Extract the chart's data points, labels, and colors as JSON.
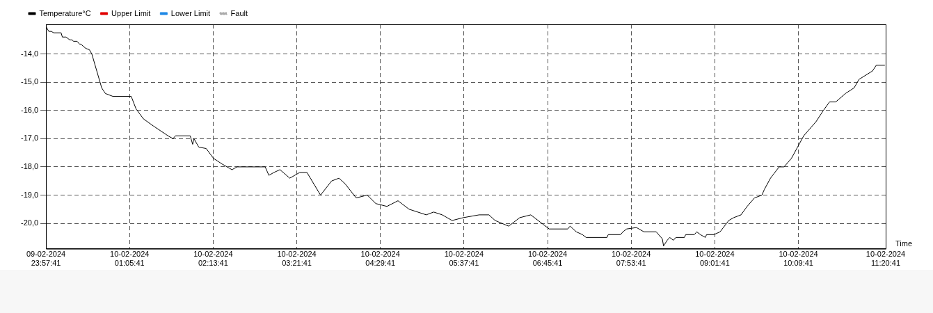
{
  "chart_data": {
    "type": "line",
    "xlabel": "Time",
    "legend": "top left",
    "grid": true,
    "marker": "none",
    "xlim": [
      "2024-02-09T23:57:41",
      "2024-02-10T11:20:41"
    ],
    "ylim": [
      -20.9,
      -12.95
    ],
    "xticks": [
      {
        "value": "2024-02-09T23:57:41",
        "label": "09-02-2024\n23:57:41"
      },
      {
        "value": "2024-02-10T01:05:41",
        "label": "10-02-2024\n01:05:41"
      },
      {
        "value": "2024-02-10T02:13:41",
        "label": "10-02-2024\n02:13:41"
      },
      {
        "value": "2024-02-10T03:21:41",
        "label": "10-02-2024\n03:21:41"
      },
      {
        "value": "2024-02-10T04:29:41",
        "label": "10-02-2024\n04:29:41"
      },
      {
        "value": "2024-02-10T05:37:41",
        "label": "10-02-2024\n05:37:41"
      },
      {
        "value": "2024-02-10T06:45:41",
        "label": "10-02-2024\n06:45:41"
      },
      {
        "value": "2024-02-10T07:53:41",
        "label": "10-02-2024\n07:53:41"
      },
      {
        "value": "2024-02-10T09:01:41",
        "label": "10-02-2024\n09:01:41"
      },
      {
        "value": "2024-02-10T10:09:41",
        "label": "10-02-2024\n10:09:41"
      },
      {
        "value": "2024-02-10T11:20:41",
        "label": "10-02-2024\n11:20:41"
      }
    ],
    "yticks": [
      {
        "value": -20,
        "label": "-20,0"
      },
      {
        "value": -19,
        "label": "-19,0"
      },
      {
        "value": -18,
        "label": "-18,0"
      },
      {
        "value": -17,
        "label": "-17,0"
      },
      {
        "value": -16,
        "label": "-16,0"
      },
      {
        "value": -15,
        "label": "-15,0"
      },
      {
        "value": -14,
        "label": "-14,0"
      }
    ],
    "series": [
      {
        "name": "Temperature°C",
        "color": "#000000",
        "line_style": "solid",
        "x": [
          "2024-02-09T23:58",
          "2024-02-10T00:00",
          "2024-02-10T00:02",
          "2024-02-10T00:04",
          "2024-02-10T00:10",
          "2024-02-10T00:11",
          "2024-02-10T00:14",
          "2024-02-10T00:17",
          "2024-02-10T00:19",
          "2024-02-10T00:20",
          "2024-02-10T00:23",
          "2024-02-10T00:25",
          "2024-02-10T00:26",
          "2024-02-10T00:30",
          "2024-02-10T00:33",
          "2024-02-10T00:35",
          "2024-02-10T00:43",
          "2024-02-10T00:46",
          "2024-02-10T00:52",
          "2024-02-10T01:07",
          "2024-02-10T01:11",
          "2024-02-10T01:17",
          "2024-02-10T01:25",
          "2024-02-10T01:37",
          "2024-02-10T01:41",
          "2024-02-10T01:43",
          "2024-02-10T01:55",
          "2024-02-10T01:57",
          "2024-02-10T01:58",
          "2024-02-10T02:02",
          "2024-02-10T02:08",
          "2024-02-10T02:14",
          "2024-02-10T02:21",
          "2024-02-10T02:29",
          "2024-02-10T02:33",
          "2024-02-10T02:56",
          "2024-02-10T02:59",
          "2024-02-10T03:03",
          "2024-02-10T03:08",
          "2024-02-10T03:16",
          "2024-02-10T03:24",
          "2024-02-10T03:30",
          "2024-02-10T03:41",
          "2024-02-10T03:50",
          "2024-02-10T03:56",
          "2024-02-10T04:01",
          "2024-02-10T04:10",
          "2024-02-10T04:19",
          "2024-02-10T04:26",
          "2024-02-10T04:35",
          "2024-02-10T04:44",
          "2024-02-10T04:53",
          "2024-02-10T05:07",
          "2024-02-10T05:13",
          "2024-02-10T05:20",
          "2024-02-10T05:28",
          "2024-02-10T05:37",
          "2024-02-10T05:50",
          "2024-02-10T05:58",
          "2024-02-10T06:03",
          "2024-02-10T06:14",
          "2024-02-10T06:23",
          "2024-02-10T06:32",
          "2024-02-10T06:41",
          "2024-02-10T06:47",
          "2024-02-10T07:02",
          "2024-02-10T07:04",
          "2024-02-10T07:09",
          "2024-02-10T07:14",
          "2024-02-10T07:17",
          "2024-02-10T07:34",
          "2024-02-10T07:35",
          "2024-02-10T07:45",
          "2024-02-10T07:47",
          "2024-02-10T07:50",
          "2024-02-10T07:58",
          "2024-02-10T08:00",
          "2024-02-10T08:04",
          "2024-02-10T08:14",
          "2024-02-10T08:19",
          "2024-02-10T08:20",
          "2024-02-10T08:23",
          "2024-02-10T08:25",
          "2024-02-10T08:28",
          "2024-02-10T08:30",
          "2024-02-10T08:37",
          "2024-02-10T08:38",
          "2024-02-10T08:45",
          "2024-02-10T08:47",
          "2024-02-10T08:50",
          "2024-02-10T08:54",
          "2024-02-10T08:55",
          "2024-02-10T09:01",
          "2024-02-10T09:06",
          "2024-02-10T09:13",
          "2024-02-10T09:17",
          "2024-02-10T09:23",
          "2024-02-10T09:28",
          "2024-02-10T09:34",
          "2024-02-10T09:40",
          "2024-02-10T09:42",
          "2024-02-10T09:47",
          "2024-02-10T09:54",
          "2024-02-10T09:58",
          "2024-02-10T10:04",
          "2024-02-10T10:09",
          "2024-02-10T10:14",
          "2024-02-10T10:24",
          "2024-02-10T10:30",
          "2024-02-10T10:35",
          "2024-02-10T10:40",
          "2024-02-10T10:48",
          "2024-02-10T10:55",
          "2024-02-10T10:59",
          "2024-02-10T11:10",
          "2024-02-10T11:13",
          "2024-02-10T11:20"
        ],
        "values": [
          -13.05,
          -13.2,
          -13.2,
          -13.25,
          -13.25,
          -13.4,
          -13.4,
          -13.5,
          -13.5,
          -13.55,
          -13.55,
          -13.65,
          -13.65,
          -13.8,
          -13.85,
          -14.0,
          -15.2,
          -15.4,
          -15.5,
          -15.5,
          -15.95,
          -16.3,
          -16.55,
          -16.9,
          -17.0,
          -16.9,
          -16.9,
          -17.2,
          -17.0,
          -17.3,
          -17.35,
          -17.7,
          -17.9,
          -18.1,
          -18.0,
          -18.0,
          -18.3,
          -18.2,
          -18.1,
          -18.4,
          -18.2,
          -18.2,
          -19.0,
          -18.5,
          -18.4,
          -18.6,
          -19.1,
          -19.0,
          -19.3,
          -19.4,
          -19.2,
          -19.5,
          -19.7,
          -19.6,
          -19.7,
          -19.9,
          -19.8,
          -19.7,
          -19.7,
          -19.9,
          -20.1,
          -19.8,
          -19.7,
          -20.0,
          -20.2,
          -20.2,
          -20.1,
          -20.3,
          -20.4,
          -20.5,
          -20.5,
          -20.4,
          -20.4,
          -20.3,
          -20.2,
          -20.15,
          -20.2,
          -20.3,
          -20.3,
          -20.55,
          -20.8,
          -20.6,
          -20.5,
          -20.6,
          -20.5,
          -20.5,
          -20.4,
          -20.4,
          -20.3,
          -20.4,
          -20.5,
          -20.4,
          -20.4,
          -20.3,
          -19.9,
          -19.8,
          -19.7,
          -19.4,
          -19.1,
          -19.0,
          -18.8,
          -18.4,
          -18.0,
          -18.0,
          -17.7,
          -17.3,
          -16.9,
          -16.4,
          -16.0,
          -15.7,
          -15.7,
          -15.4,
          -15.2,
          -14.9,
          -14.6,
          -14.4,
          -14.4
        ]
      },
      {
        "name": "Upper Limit",
        "color": "#e00000",
        "line_style": "solid"
      },
      {
        "name": "Lower Limit",
        "color": "#1e88e5",
        "line_style": "solid"
      },
      {
        "name": "Fault",
        "color": "#aaaaaa",
        "line_style": "dotted"
      }
    ]
  }
}
